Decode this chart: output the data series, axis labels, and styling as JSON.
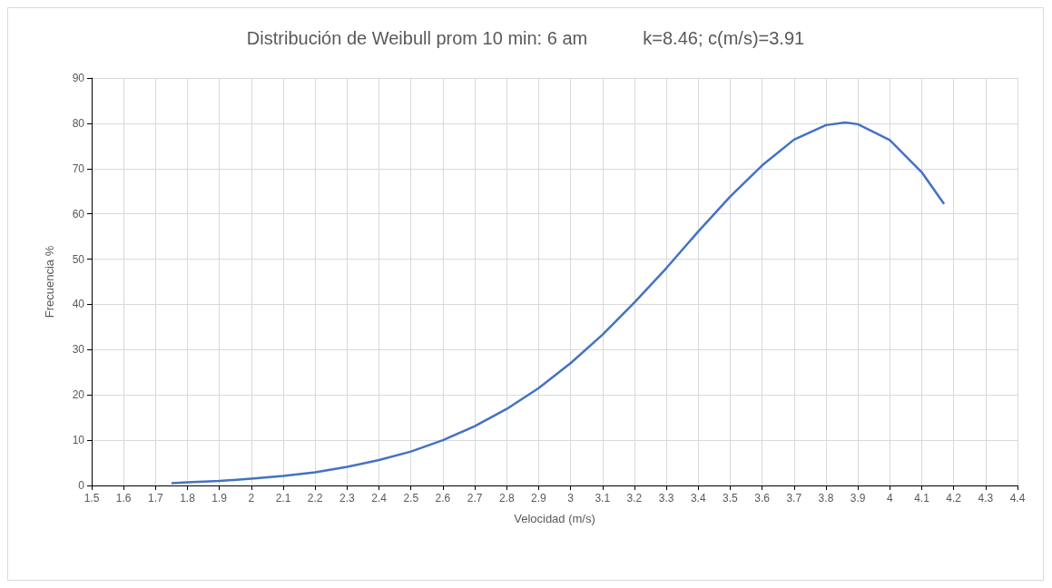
{
  "chart_data": {
    "type": "line",
    "title": "Distribución de Weibull prom 10 min: 6 am           k=8.46; c(m/s)=3.91",
    "xlabel": "Velocidad (m/s)",
    "ylabel": "Frecuencia %",
    "series": [
      {
        "color": "#4472c4",
        "x": [
          1.75,
          1.8,
          1.9,
          2.0,
          2.1,
          2.2,
          2.3,
          2.4,
          2.5,
          2.6,
          2.7,
          2.8,
          2.9,
          3.0,
          3.1,
          3.2,
          3.3,
          3.4,
          3.5,
          3.6,
          3.7,
          3.8,
          3.86,
          3.9,
          4.0,
          4.1,
          4.17
        ],
        "values": [
          0.5,
          0.7,
          1.0,
          1.5,
          2.1,
          2.9,
          4.1,
          5.6,
          7.5,
          10,
          13.1,
          16.9,
          21.5,
          27,
          33.3,
          40.4,
          48,
          56.1,
          63.8,
          70.7,
          76.4,
          79.6,
          80.2,
          79.8,
          76.3,
          69.2,
          62.2
        ]
      }
    ],
    "xlim": [
      1.5,
      4.4
    ],
    "xticks": [
      1.5,
      1.6,
      1.7,
      1.8,
      1.9,
      2,
      2.1,
      2.2,
      2.3,
      2.4,
      2.5,
      2.6,
      2.7,
      2.8,
      2.9,
      3,
      3.1,
      3.2,
      3.3,
      3.4,
      3.5,
      3.6,
      3.7,
      3.8,
      3.9,
      4,
      4.1,
      4.2,
      4.3,
      4.4
    ],
    "ylim": [
      0,
      90
    ],
    "yticks": [
      0,
      10,
      20,
      30,
      40,
      50,
      60,
      70,
      80,
      90
    ],
    "grid": true,
    "marker": "none",
    "line_style": "solid"
  }
}
